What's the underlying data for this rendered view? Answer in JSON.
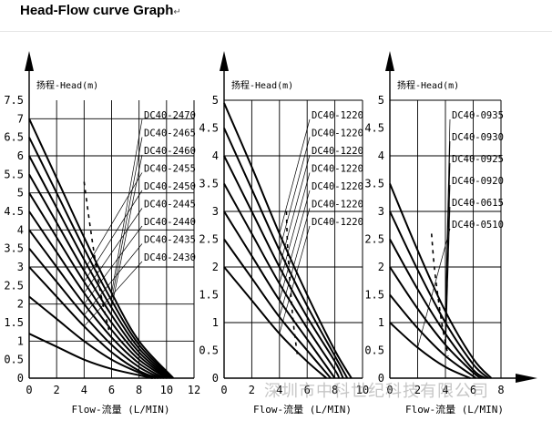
{
  "page_title": "Head-Flow curve Graph",
  "title_mark": "↵",
  "watermark": "深圳市中科世纪科技有限公司",
  "chart_data": [
    {
      "type": "line",
      "ylabel": "扬程-Head(m)",
      "xlabel": "Flow-流量 (L/MIN)",
      "xlim": [
        0,
        12
      ],
      "ylim": [
        0,
        7.5
      ],
      "xticks": [
        0,
        2,
        4,
        6,
        8,
        10,
        12
      ],
      "yticks": [
        0,
        0.5,
        1,
        1.5,
        2,
        2.5,
        3,
        3.5,
        4,
        4.5,
        5,
        5.5,
        6,
        6.5,
        7,
        7.5
      ],
      "grid": true,
      "series": [
        {
          "name": "DC40-2470",
          "x": [
            0,
            2,
            4,
            6,
            8,
            10.5
          ],
          "y": [
            7,
            5.4,
            3.8,
            2.3,
            1.0,
            0
          ]
        },
        {
          "name": "DC40-2465",
          "x": [
            0,
            2,
            4,
            6,
            8,
            10.4
          ],
          "y": [
            6.5,
            5.0,
            3.5,
            2.1,
            0.9,
            0
          ]
        },
        {
          "name": "DC40-2460",
          "x": [
            0,
            2,
            4,
            6,
            8,
            10.3
          ],
          "y": [
            6.0,
            4.6,
            3.2,
            1.9,
            0.8,
            0
          ]
        },
        {
          "name": "DC40-2455",
          "x": [
            0,
            2,
            4,
            6,
            8,
            10.2
          ],
          "y": [
            5.5,
            4.2,
            2.9,
            1.7,
            0.7,
            0
          ]
        },
        {
          "name": "DC40-2450",
          "x": [
            0,
            2,
            4,
            6,
            8,
            10.1
          ],
          "y": [
            5.0,
            3.8,
            2.6,
            1.5,
            0.6,
            0
          ]
        },
        {
          "name": "DC40-2445",
          "x": [
            0,
            2,
            4,
            6,
            8,
            10
          ],
          "y": [
            4.5,
            3.4,
            2.3,
            1.3,
            0.5,
            0
          ]
        },
        {
          "name": "DC40-2440",
          "x": [
            0,
            2,
            4,
            6,
            8,
            9.8
          ],
          "y": [
            4.0,
            3.0,
            2.0,
            1.1,
            0.4,
            0
          ]
        },
        {
          "name": "DC40-2435",
          "x": [
            0,
            2,
            4,
            6,
            8,
            9.6
          ],
          "y": [
            3.5,
            2.6,
            1.7,
            0.9,
            0.3,
            0
          ]
        },
        {
          "name": "DC40-2430",
          "x": [
            0,
            2,
            4,
            6,
            8,
            9.4
          ],
          "y": [
            3.0,
            2.2,
            1.4,
            0.7,
            0.2,
            0
          ]
        }
      ],
      "extra_curves": [
        {
          "x": [
            0,
            2,
            4,
            6,
            8,
            9.2
          ],
          "y": [
            2.2,
            1.6,
            1.0,
            0.5,
            0.15,
            0
          ]
        },
        {
          "x": [
            0,
            2,
            4,
            6,
            8,
            9.0
          ],
          "y": [
            1.2,
            0.85,
            0.5,
            0.25,
            0.08,
            0
          ]
        }
      ],
      "dashed_boundary": {
        "x": [
          4,
          4.4,
          4.8,
          5.2,
          5.8
        ],
        "y": [
          5.3,
          4.2,
          3.2,
          2.3,
          1.3
        ]
      }
    },
    {
      "type": "line",
      "ylabel": "扬程-Head(m)",
      "xlabel": "Flow-流量 (L/MIN)",
      "xlim": [
        0,
        10
      ],
      "ylim": [
        0,
        5
      ],
      "xticks": [
        0,
        2,
        4,
        6,
        8,
        10
      ],
      "yticks": [
        0,
        0.5,
        1,
        1.5,
        2,
        2.5,
        3,
        3.5,
        4,
        4.5,
        5
      ],
      "grid": true,
      "series": [
        {
          "name": "DC40-1220",
          "x": [
            0,
            2,
            4,
            6,
            8,
            9.2
          ],
          "y": [
            4.95,
            3.8,
            2.6,
            1.5,
            0.5,
            0
          ]
        },
        {
          "name": "DC40-1220",
          "x": [
            0,
            2,
            4,
            6,
            8,
            8.9
          ],
          "y": [
            4.5,
            3.4,
            2.3,
            1.3,
            0.4,
            0
          ]
        },
        {
          "name": "DC40-1220",
          "x": [
            0,
            2,
            4,
            6,
            8,
            8.6
          ],
          "y": [
            4.0,
            3.0,
            2.0,
            1.1,
            0.3,
            0
          ]
        },
        {
          "name": "DC40-1220",
          "x": [
            0,
            2,
            4,
            6,
            8,
            8.3
          ],
          "y": [
            3.5,
            2.6,
            1.7,
            0.9,
            0.15,
            0
          ]
        },
        {
          "name": "DC40-1220",
          "x": [
            0,
            2,
            4,
            6,
            8
          ],
          "y": [
            3.0,
            2.2,
            1.4,
            0.7,
            0
          ]
        },
        {
          "name": "DC40-1220",
          "x": [
            0,
            2,
            4,
            6,
            7.7
          ],
          "y": [
            2.5,
            1.8,
            1.1,
            0.5,
            0
          ]
        },
        {
          "name": "DC40-1220",
          "x": [
            0,
            2,
            4,
            6,
            7.4
          ],
          "y": [
            2.0,
            1.4,
            0.8,
            0.3,
            0
          ]
        }
      ],
      "dashed_boundary": {
        "x": [
          4.5,
          4.6,
          4.8,
          5.0,
          5.3
        ],
        "y": [
          3.0,
          2.3,
          1.6,
          1.0,
          0.4
        ]
      }
    },
    {
      "type": "line",
      "ylabel": "扬程-Head(m)",
      "xlabel": "Flow-流量 (L/MIN)",
      "xlim": [
        0,
        8
      ],
      "ylim": [
        0,
        5
      ],
      "xticks": [
        0,
        2,
        4,
        6,
        8
      ],
      "yticks": [
        0,
        0.5,
        1,
        1.5,
        2,
        2.5,
        3,
        3.5,
        4,
        4.5,
        5
      ],
      "grid": true,
      "series": [
        {
          "name": "DC40-0935",
          "x": [
            0,
            2,
            4,
            6,
            7.3
          ],
          "y": [
            3.5,
            2.3,
            1.2,
            0.35,
            0
          ]
        },
        {
          "name": "DC40-0930",
          "x": [
            0,
            2,
            4,
            6,
            7.1
          ],
          "y": [
            3.0,
            1.95,
            1.0,
            0.25,
            0
          ]
        },
        {
          "name": "DC40-0925",
          "x": [
            0,
            2,
            4,
            6,
            6.9
          ],
          "y": [
            2.5,
            1.6,
            0.8,
            0.15,
            0
          ]
        },
        {
          "name": "DC40-0920",
          "x": [
            0,
            2,
            4,
            6,
            6.6
          ],
          "y": [
            2.0,
            1.25,
            0.6,
            0.1,
            0
          ]
        },
        {
          "name": "DC40-0615",
          "x": [
            0,
            2,
            4,
            6.2
          ],
          "y": [
            1.5,
            0.9,
            0.4,
            0
          ]
        },
        {
          "name": "DC40-0510",
          "x": [
            0,
            2,
            4,
            5.8
          ],
          "y": [
            1.0,
            0.55,
            0.2,
            0
          ]
        }
      ],
      "dashed_boundary": {
        "x": [
          3.0,
          3.2,
          3.5,
          3.8,
          4.2
        ],
        "y": [
          2.6,
          2.0,
          1.4,
          0.9,
          0.4
        ]
      }
    }
  ]
}
